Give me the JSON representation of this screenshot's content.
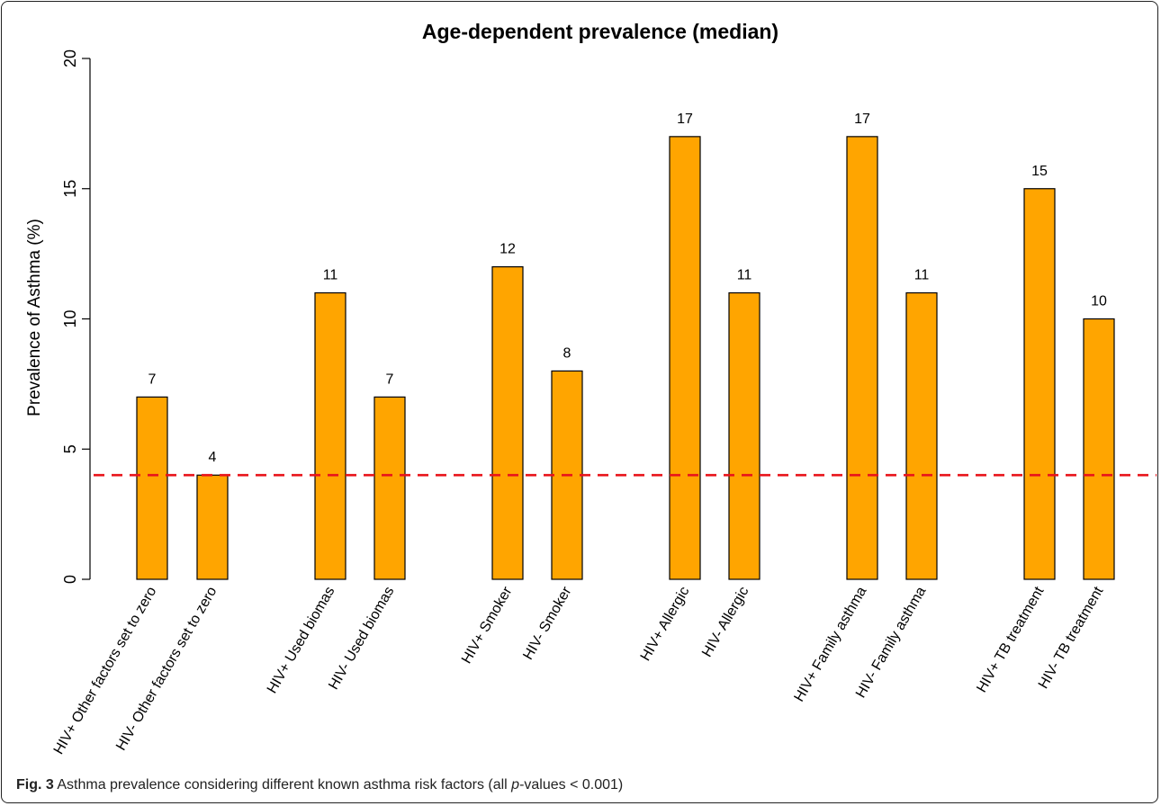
{
  "chart_data": {
    "type": "bar",
    "title": "Age-dependent prevalence (median)",
    "xlabel": "",
    "ylabel": "Prevalence of Asthma (%)",
    "ylim": [
      0,
      20
    ],
    "yticks": [
      0,
      5,
      10,
      15,
      20
    ],
    "grid": false,
    "categories": [
      "HIV+ Other factors set to zero",
      "HIV- Other factors set to zero",
      "HIV+ Used biomas",
      "HIV- Used biomas",
      "HIV+ Smoker",
      "HIV- Smoker",
      "HIV+ Allergic",
      "HIV- Allergic",
      "HIV+ Family asthma",
      "HIV- Family asthma",
      "HIV+ TB treatment",
      "HIV- TB treatment"
    ],
    "values": [
      7,
      4,
      11,
      7,
      12,
      8,
      17,
      11,
      17,
      11,
      15,
      10
    ],
    "bar_color": "#FFA500",
    "reference_line": {
      "value": 4,
      "color": "#E8141B",
      "style": "dashed"
    }
  },
  "caption": {
    "label": "Fig. 3",
    "text_before": "Asthma prevalence considering different known asthma risk factors (all ",
    "text_italic": "p",
    "text_after": "-values < 0.001)"
  }
}
